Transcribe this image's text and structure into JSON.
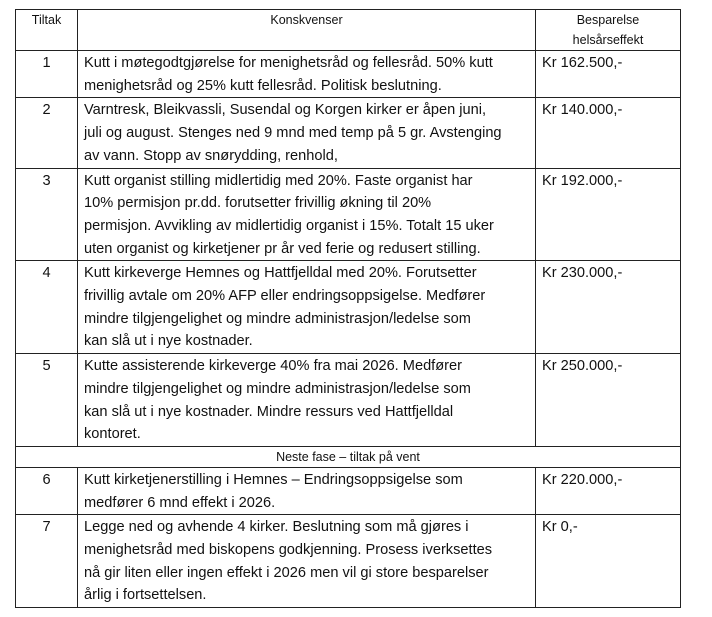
{
  "table": {
    "header": {
      "tiltak": "Tiltak",
      "konsekvenser": "Konskvenser",
      "besparelse": [
        "Besparelse",
        "helsårseffekt"
      ]
    },
    "groups": [
      {
        "rows": [
          {
            "nr": "1",
            "lines": [
              "Kutt i møtegodtgjørelse for menighetsråd og fellesråd. 50% kutt",
              "menighetsråd og 25% kutt fellesråd. Politisk beslutning."
            ],
            "amount": "Kr 162.500,-"
          },
          {
            "nr": "2",
            "lines": [
              "Varntresk, Bleikvassli, Susendal og Korgen kirker er åpen juni,",
              "juli og august. Stenges ned 9 mnd med temp på 5 gr. Avstenging",
              "av vann. Stopp av snørydding, renhold,"
            ],
            "amount": "Kr 140.000,-"
          },
          {
            "nr": "3",
            "lines": [
              "Kutt organist stilling midlertidig med 20%. Faste organist har",
              "10% permisjon pr.dd. forutsetter frivillig økning til 20%",
              "permisjon. Avvikling av midlertidig organist i 15%. Totalt 15 uker",
              "uten organist og kirketjener pr år ved ferie og redusert stilling."
            ],
            "amount": "Kr 192.000,-"
          },
          {
            "nr": "4",
            "lines": [
              "Kutt kirkeverge Hemnes og Hattfjelldal med 20%. Forutsetter",
              "frivillig avtale om 20% AFP eller endringsoppsigelse. Medfører",
              "mindre tilgjengelighet og mindre administrasjon/ledelse som",
              "kan slå ut i nye kostnader."
            ],
            "amount": "Kr 230.000,-"
          },
          {
            "nr": "5",
            "lines": [
              "Kutte assisterende kirkeverge 40% fra mai 2026. Medfører",
              "mindre tilgjengelighet og mindre administrasjon/ledelse som",
              "kan slå ut i nye kostnader. Mindre ressurs ved Hattfjelldal",
              "kontoret."
            ],
            "amount": "Kr 250.000,-"
          }
        ]
      },
      {
        "heading": "Neste fase – tiltak på vent",
        "rows": [
          {
            "nr": "6",
            "lines": [
              "Kutt kirketjenerstilling i Hemnes – Endringsoppsigelse som",
              "medfører 6 mnd effekt i 2026."
            ],
            "amount": "Kr 220.000,-"
          },
          {
            "nr": "7",
            "lines": [
              "Legge ned og avhende 4 kirker. Beslutning som må gjøres i",
              "menighetsråd med biskopens godkjenning. Prosess iverksettes",
              "nå gir liten eller ingen effekt i 2026 men vil gi store besparelser",
              "årlig i fortsettelsen."
            ],
            "amount": "Kr 0,-"
          }
        ]
      }
    ]
  }
}
